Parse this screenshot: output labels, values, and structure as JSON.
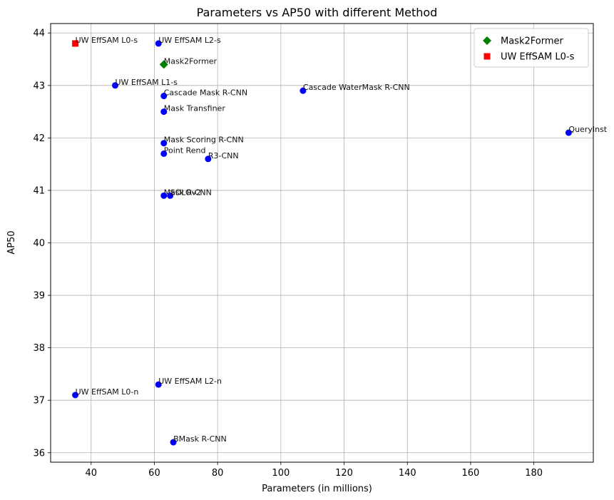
{
  "chart_data": {
    "type": "scatter",
    "title": "Parameters vs AP50 with different Method",
    "xlabel": "Parameters (in millions)",
    "ylabel": "AP50",
    "xlim": [
      27.2,
      198.8
    ],
    "ylim": [
      35.82,
      44.18
    ],
    "xticks": [
      40,
      60,
      80,
      100,
      120,
      140,
      160,
      180
    ],
    "yticks": [
      36,
      37,
      38,
      39,
      40,
      41,
      42,
      43,
      44
    ],
    "grid": true,
    "legend_position": "top-right",
    "legend": [
      {
        "label": "Mask2Former",
        "marker": "diamond",
        "color": "#008000"
      },
      {
        "label": "UW EffSAM L0-s",
        "marker": "square",
        "color": "#ff0000"
      }
    ],
    "points": [
      {
        "label": "UW EffSAM L0-s",
        "x": 35,
        "y": 43.8,
        "marker": "square",
        "color": "#ff0000"
      },
      {
        "label": "UW EffSAM L2-s",
        "x": 61.3,
        "y": 43.8,
        "marker": "circle",
        "color": "#0000ff"
      },
      {
        "label": "Mask2Former",
        "x": 63,
        "y": 43.4,
        "marker": "diamond",
        "color": "#008000"
      },
      {
        "label": "UW EffSAM L1-s",
        "x": 47.6,
        "y": 43.0,
        "marker": "circle",
        "color": "#0000ff"
      },
      {
        "label": "Cascade Mask R-CNN",
        "x": 63,
        "y": 42.8,
        "marker": "circle",
        "color": "#0000ff"
      },
      {
        "label": "Cascade WaterMask R-CNN",
        "x": 107,
        "y": 42.9,
        "marker": "circle",
        "color": "#0000ff"
      },
      {
        "label": "Mask Transfiner",
        "x": 63,
        "y": 42.5,
        "marker": "circle",
        "color": "#0000ff"
      },
      {
        "label": "QueryInst",
        "x": 191,
        "y": 42.1,
        "marker": "circle",
        "color": "#0000ff"
      },
      {
        "label": "Mask Scoring R-CNN",
        "x": 63,
        "y": 41.9,
        "marker": "circle",
        "color": "#0000ff"
      },
      {
        "label": "Point Rend",
        "x": 63,
        "y": 41.7,
        "marker": "circle",
        "color": "#0000ff"
      },
      {
        "label": "R3-CNN",
        "x": 77,
        "y": 41.6,
        "marker": "circle",
        "color": "#0000ff"
      },
      {
        "label": "Mask R-CNN",
        "x": 63,
        "y": 40.9,
        "marker": "circle",
        "color": "#0000ff"
      },
      {
        "label": "SOLOv2",
        "x": 65,
        "y": 40.9,
        "marker": "circle",
        "color": "#0000ff"
      },
      {
        "label": "UW EffSAM L2-n",
        "x": 61.3,
        "y": 37.3,
        "marker": "circle",
        "color": "#0000ff"
      },
      {
        "label": "UW EffSAM L0-n",
        "x": 35,
        "y": 37.1,
        "marker": "circle",
        "color": "#0000ff"
      },
      {
        "label": "BMask R-CNN",
        "x": 66,
        "y": 36.2,
        "marker": "circle",
        "color": "#0000ff"
      }
    ]
  }
}
